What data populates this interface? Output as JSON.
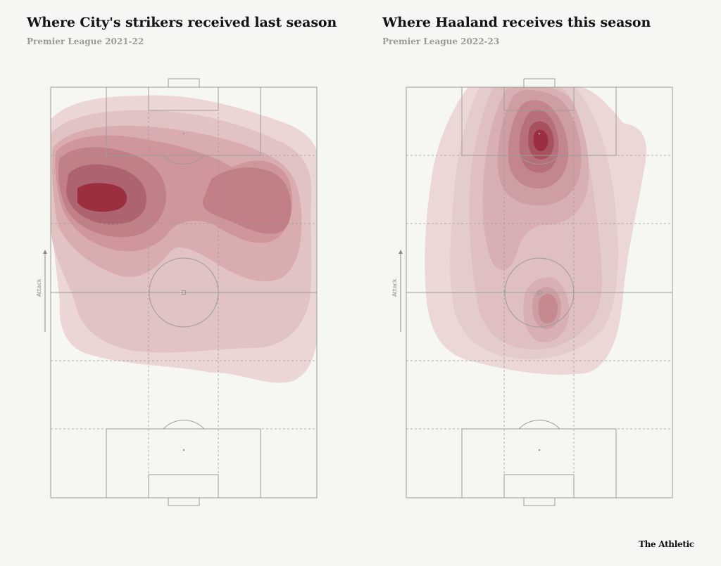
{
  "brand": "The Athletic",
  "colors": {
    "background": "#f6f6f2",
    "pitch_line": "#9c9c98",
    "density_low": "#ecd7d6",
    "density_high": "#9b2f40"
  },
  "chart_data": [
    {
      "type": "heatmap",
      "title": "Where City's strikers received last season",
      "subtitle": "Premier League 2021-22",
      "axis_label": "Attack",
      "peaks": [
        {
          "x": 0.22,
          "y": 0.74,
          "weight": 1.0
        },
        {
          "x": 0.72,
          "y": 0.7,
          "weight": 0.78
        },
        {
          "x": 0.5,
          "y": 0.86,
          "weight": 0.55
        }
      ]
    },
    {
      "type": "heatmap",
      "title": "Where Haaland receives this season",
      "subtitle": "Premier League 2022-23",
      "axis_label": "Attack",
      "peaks": [
        {
          "x": 0.46,
          "y": 0.87,
          "weight": 1.0
        },
        {
          "x": 0.55,
          "y": 0.48,
          "weight": 0.62
        },
        {
          "x": 0.35,
          "y": 0.65,
          "weight": 0.45
        }
      ]
    }
  ]
}
